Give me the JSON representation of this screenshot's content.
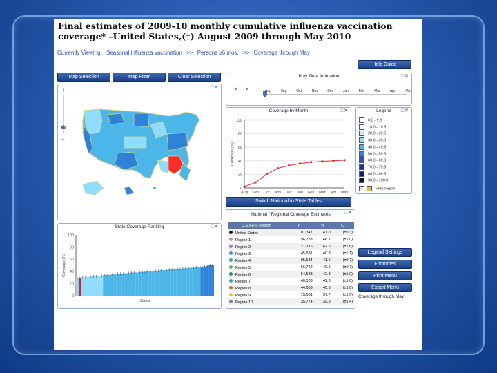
{
  "title": "Final estimates of 2009-10 monthly cumulative influenza vaccination coverage* –United States,(†) August 2009 through May 2010",
  "breadcrumb": {
    "prefix": "Currently Viewing:",
    "items": [
      "Seasonal influenza vaccination",
      ">>",
      "Persons ≥6 mos.",
      ">>",
      "Coverage through May"
    ]
  },
  "buttons": {
    "map_selection": "Map Selection",
    "map_filter": "Map Filter",
    "clear_selection": "Clear Selection",
    "help_guide": "Help Guide",
    "switch_tables": "Switch National to State Tables",
    "legend_settings": "Legend Settings",
    "footnotes": "Footnotes",
    "print_menu": "Print Menu",
    "export_menu": "Export Menu"
  },
  "panels": {
    "animation": "Play Time Animation",
    "coverage_month": "Coverage by Month",
    "legend": "Legend",
    "national_table": "National / Regional Coverage Estimates",
    "state_ranking": "State Coverage Ranking",
    "panel_controls": "□✕"
  },
  "animation": {
    "months": [
      "Aug",
      "Sep",
      "Oct",
      "Nov",
      "Dec",
      "Jan",
      "Feb",
      "Mar",
      "Apr",
      "May"
    ],
    "prev": "<",
    "next": ">"
  },
  "legend": {
    "items": [
      {
        "label": "0.0 - 9.9",
        "color": "#ffffff"
      },
      {
        "label": "10.0 - 19.9",
        "color": "#eaf6ff"
      },
      {
        "label": "20.0 - 29.9",
        "color": "#c8ecff"
      },
      {
        "label": "30.0 - 39.9",
        "color": "#8fdcff"
      },
      {
        "label": "40.0 - 49.9",
        "color": "#4cb6e8"
      },
      {
        "label": "50.0 - 59.9",
        "color": "#2f82d8"
      },
      {
        "label": "60.0 - 69.9",
        "color": "#2a4fc4"
      },
      {
        "label": "70.0 - 79.9",
        "color": "#1c2e9a"
      },
      {
        "label": "80.0 - 89.9",
        "color": "#101c6c"
      },
      {
        "label": "90.0 - 100.0",
        "color": "#081040"
      }
    ],
    "hhs": "HHS region",
    "check": "✓"
  },
  "footer": "Coverage through May",
  "table": {
    "headers": [
      "U.S./HHS Region",
      "n",
      "%",
      "CI"
    ],
    "rows": [
      {
        "name": "United States",
        "n": "107,347",
        "pct": "41.0",
        "ci": "(±0.3)",
        "color": "#111111"
      },
      {
        "name": "Region 1",
        "n": "56,733",
        "pct": "46.1",
        "ci": "(±1.0)",
        "color": "#e07aa8"
      },
      {
        "name": "Region 2",
        "n": "21,316",
        "pct": "42.6",
        "ci": "(±1.6)",
        "color": "#9a7ad0"
      },
      {
        "name": "Region 3",
        "n": "45,631",
        "pct": "40.3",
        "ci": "(±1.1)",
        "color": "#4a8ad8"
      },
      {
        "name": "Region 4",
        "n": "95,534",
        "pct": "41.6",
        "ci": "(±0.7)",
        "color": "#3aa0a0"
      },
      {
        "name": "Region 5",
        "n": "66,722",
        "pct": "40.5",
        "ci": "(±0.7)",
        "color": "#5ab85a"
      },
      {
        "name": "Region 6",
        "n": "54,533",
        "pct": "42.3",
        "ci": "(±1.0)",
        "color": "#2a8a6a"
      },
      {
        "name": "Region 7",
        "n": "40,103",
        "pct": "42.3",
        "ci": "(±1.0)",
        "color": "#3a9ad0"
      },
      {
        "name": "Region 8",
        "n": "44,603",
        "pct": "40.6",
        "ci": "(±1.0)",
        "color": "#c86a3a"
      },
      {
        "name": "Region 9",
        "n": "15,501",
        "pct": "37.7",
        "ci": "(±1.6)",
        "color": "#e0c040"
      },
      {
        "name": "Region 10",
        "n": "35,774",
        "pct": "39.3",
        "ci": "(±1.4)",
        "color": "#7a8a9a"
      }
    ]
  },
  "chart_data": [
    {
      "type": "line",
      "title": "Coverage by Month",
      "ylabel": "Coverage (%)",
      "xlabel": "",
      "categories": [
        "Aug",
        "Sep",
        "Oct",
        "Nov",
        "Dec",
        "Jan",
        "Feb",
        "Mar",
        "Apr",
        "May"
      ],
      "values": [
        2,
        8,
        20,
        29,
        33,
        36,
        38,
        39,
        40,
        41
      ],
      "ylim": [
        0,
        100
      ],
      "yticks": [
        0,
        20,
        40,
        60,
        80,
        100
      ]
    },
    {
      "type": "bar",
      "title": "State Coverage Ranking",
      "ylabel": "Coverage (%)",
      "xlabel": "States",
      "ylim": [
        0,
        100
      ],
      "yticks": [
        0,
        20,
        40,
        60,
        80,
        100
      ],
      "values": [
        28,
        29,
        30,
        30,
        31,
        31,
        32,
        32,
        33,
        33,
        34,
        34,
        34,
        35,
        35,
        36,
        36,
        36,
        37,
        37,
        38,
        38,
        38,
        39,
        39,
        39,
        40,
        40,
        41,
        41,
        41,
        42,
        42,
        42,
        43,
        43,
        44,
        44,
        44,
        45,
        45,
        46,
        46,
        46,
        47,
        47,
        48,
        48,
        49,
        50,
        50
      ],
      "highlight_index": 1
    }
  ]
}
